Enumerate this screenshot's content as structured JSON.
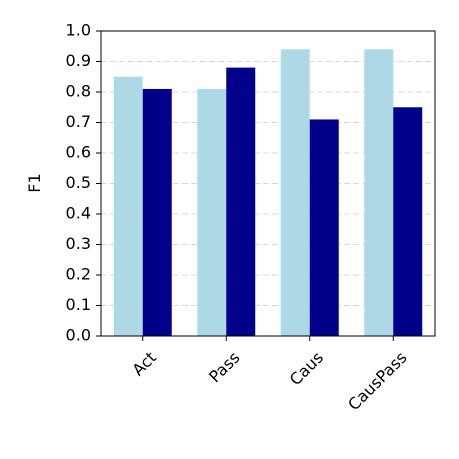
{
  "chart_data": {
    "type": "bar",
    "y_label": "F1",
    "categories": [
      "Act",
      "Pass",
      "Caus",
      "CausPass"
    ],
    "series": [
      {
        "color": "#add8e6",
        "values": [
          0.85,
          0.81,
          0.94,
          0.94
        ]
      },
      {
        "color": "#00008b",
        "values": [
          0.81,
          0.88,
          0.71,
          0.75
        ]
      }
    ],
    "ylim": [
      0,
      1
    ],
    "yticks": [
      {
        "value": 0,
        "label": "0.0"
      },
      0.1,
      0.2,
      0.3,
      0.4,
      0.5,
      0.6,
      0.7,
      0.8,
      0.9,
      {
        "value": 1,
        "label": "1.0"
      }
    ],
    "grid": true
  }
}
